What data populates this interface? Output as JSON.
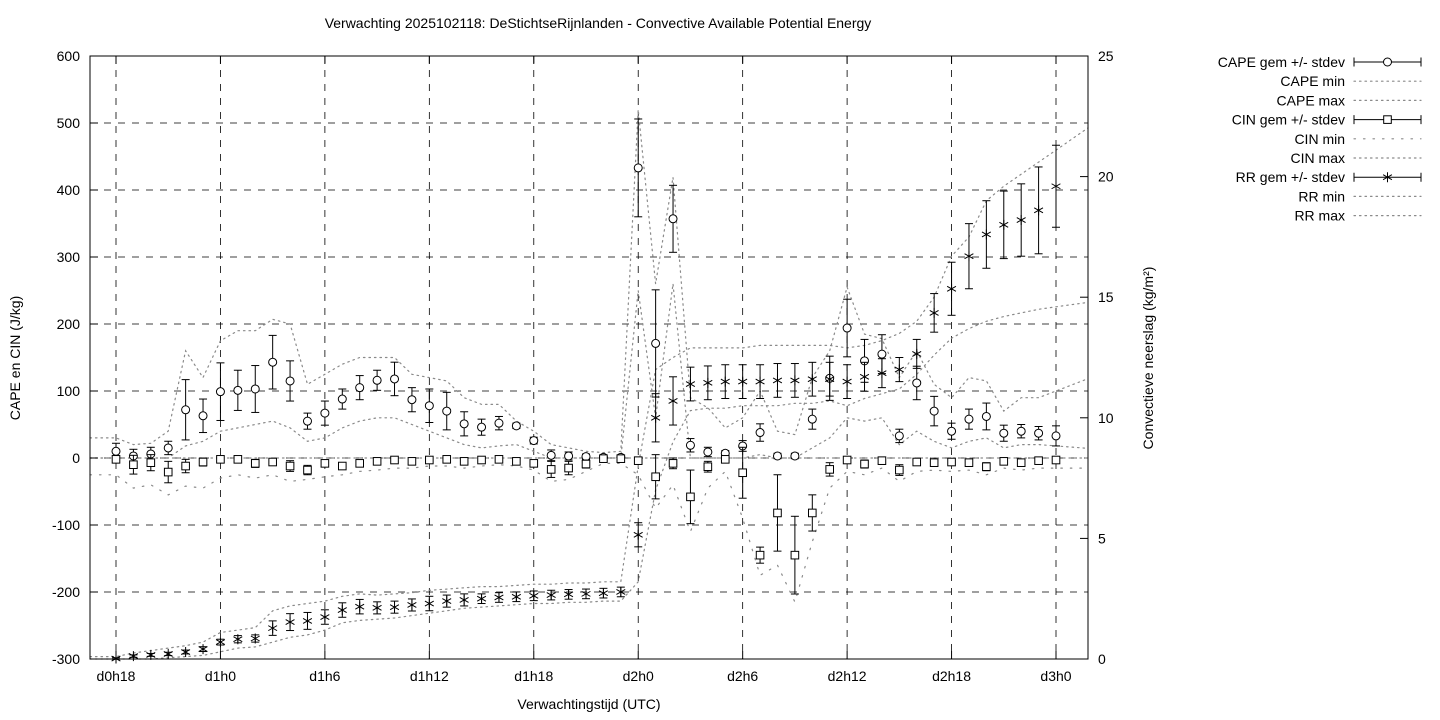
{
  "chart_data": {
    "type": "errorbar-line",
    "title": "Verwachting 2025102118: DeStichtseRijnlanden - Convective Available Potential Energy",
    "xlabel": "Verwachtingstijd (UTC)",
    "ylabel_left": "CAPE en CIN (J/kg)",
    "ylabel_right": "Convectieve neerslag (kg/m²)",
    "ylim_left": [
      -300,
      600
    ],
    "ylim_right": [
      0,
      25
    ],
    "y_ticks_left": [
      -300,
      -200,
      -100,
      0,
      100,
      200,
      300,
      400,
      500,
      600
    ],
    "y_ticks_right": [
      0,
      5,
      10,
      15,
      20,
      25
    ],
    "grid": true,
    "legend_position": "outside-right",
    "colors": {
      "foreground": "#000000",
      "envelope": "#8a8a8a",
      "background": "#ffffff"
    },
    "x_hours": 55,
    "x_ticks": [
      {
        "t": 0,
        "label": "d0h18"
      },
      {
        "t": 6,
        "label": "d1h0"
      },
      {
        "t": 12,
        "label": "d1h6"
      },
      {
        "t": 18,
        "label": "d1h12"
      },
      {
        "t": 24,
        "label": "d1h18"
      },
      {
        "t": 30,
        "label": "d2h0"
      },
      {
        "t": 36,
        "label": "d2h6"
      },
      {
        "t": 42,
        "label": "d2h12"
      },
      {
        "t": 48,
        "label": "d2h18"
      },
      {
        "t": 54,
        "label": "d3h0"
      }
    ],
    "legend": [
      {
        "label": "CAPE gem +/- stdev",
        "sample": "errorbar",
        "marker": "circle"
      },
      {
        "label": "CAPE min",
        "sample": "dots"
      },
      {
        "label": "CAPE max",
        "sample": "dots"
      },
      {
        "label": "CIN gem +/- stdev",
        "sample": "errorbar",
        "marker": "square"
      },
      {
        "label": "CIN min",
        "sample": "sparse-dots"
      },
      {
        "label": "CIN max",
        "sample": "dots"
      },
      {
        "label": "RR gem +/- stdev",
        "sample": "errorbar",
        "marker": "asterisk"
      },
      {
        "label": "RR min",
        "sample": "dots"
      },
      {
        "label": "RR max",
        "sample": "dots"
      }
    ],
    "series": {
      "cape": {
        "name": "CAPE",
        "axis": "left",
        "marker": "circle",
        "mean": [
          10,
          3,
          6,
          15,
          72,
          63,
          99,
          101,
          103,
          143,
          115,
          55,
          67,
          88,
          105,
          116,
          118,
          87,
          78,
          70,
          51,
          46,
          52,
          48,
          26,
          4,
          3,
          2,
          1,
          1,
          433,
          171,
          357,
          19,
          9,
          7,
          18,
          38,
          3,
          3,
          58,
          119,
          194,
          145,
          155,
          33,
          112,
          70,
          40,
          58,
          62,
          37,
          40,
          37,
          33
        ],
        "std": [
          12,
          10,
          10,
          10,
          45,
          25,
          43,
          30,
          35,
          40,
          30,
          12,
          18,
          15,
          18,
          15,
          25,
          18,
          25,
          28,
          18,
          12,
          10,
          4,
          5,
          8,
          6,
          4,
          2,
          2,
          73,
          80,
          50,
          10,
          7,
          4,
          8,
          13,
          4,
          4,
          15,
          33,
          43,
          32,
          29,
          10,
          25,
          22,
          12,
          15,
          20,
          12,
          10,
          10,
          15
        ],
        "min": [
          0,
          0,
          0,
          0,
          18,
          25,
          40,
          45,
          50,
          55,
          45,
          25,
          30,
          45,
          55,
          60,
          60,
          50,
          40,
          30,
          20,
          15,
          18,
          20,
          10,
          0,
          0,
          0,
          0,
          0,
          250,
          60,
          260,
          0,
          0,
          0,
          0,
          5,
          0,
          0,
          15,
          30,
          60,
          55,
          60,
          20,
          40,
          25,
          15,
          25,
          30,
          15,
          20,
          20,
          18
        ],
        "max": [
          30,
          20,
          22,
          40,
          160,
          120,
          175,
          190,
          190,
          207,
          200,
          110,
          125,
          140,
          150,
          150,
          150,
          125,
          120,
          115,
          90,
          80,
          80,
          55,
          40,
          20,
          15,
          10,
          8,
          10,
          520,
          260,
          419,
          90,
          75,
          45,
          60,
          100,
          40,
          35,
          120,
          160,
          255,
          185,
          178,
          120,
          160,
          110,
          90,
          120,
          115,
          70,
          90,
          90,
          100
        ]
      },
      "cin": {
        "name": "CIN",
        "axis": "left",
        "marker": "square",
        "mean": [
          -2,
          -10,
          -7,
          -21,
          -12,
          -6,
          -2,
          -2,
          -8,
          -6,
          -12,
          -18,
          -8,
          -12,
          -8,
          -5,
          -3,
          -5,
          -3,
          -2,
          -5,
          -3,
          -2,
          -5,
          -8,
          -17,
          -15,
          -9,
          -1,
          -1,
          -4,
          -28,
          -8,
          -58,
          -13,
          -2,
          -22,
          -145,
          -82,
          -145,
          -82,
          -17,
          -3,
          -9,
          -4,
          -18,
          -6,
          -7,
          -6,
          -7,
          -13,
          -5,
          -7,
          -4,
          -3
        ],
        "std": [
          4,
          14,
          12,
          16,
          10,
          6,
          4,
          3,
          6,
          5,
          8,
          7,
          5,
          5,
          4,
          4,
          3,
          4,
          3,
          3,
          4,
          3,
          2,
          3,
          5,
          12,
          10,
          6,
          2,
          2,
          4,
          33,
          8,
          40,
          8,
          3,
          38,
          12,
          57,
          58,
          27,
          10,
          4,
          6,
          4,
          8,
          4,
          4,
          5,
          4,
          6,
          4,
          4,
          4,
          4
        ],
        "min": [
          -25,
          -45,
          -40,
          -55,
          -42,
          -45,
          -30,
          -25,
          -30,
          -25,
          -35,
          -32,
          -28,
          -25,
          -20,
          -18,
          -15,
          -15,
          -12,
          -12,
          -15,
          -12,
          -10,
          -12,
          -18,
          -35,
          -32,
          -20,
          -8,
          -8,
          -25,
          -75,
          -40,
          -110,
          -45,
          -20,
          -90,
          -175,
          -160,
          -215,
          -125,
          -45,
          -20,
          -25,
          -15,
          -35,
          -20,
          -18,
          -20,
          -18,
          -25,
          -15,
          -18,
          -15,
          -15
        ],
        "max": [
          0,
          0,
          0,
          0,
          0,
          0,
          0,
          0,
          0,
          0,
          0,
          0,
          0,
          0,
          0,
          0,
          0,
          0,
          0,
          0,
          0,
          0,
          0,
          0,
          0,
          0,
          0,
          0,
          0,
          0,
          0,
          0,
          0,
          0,
          0,
          0,
          0,
          0,
          0,
          0,
          0,
          0,
          0,
          0,
          0,
          0,
          0,
          0,
          0,
          0,
          0,
          0,
          0,
          0,
          0
        ]
      },
      "rr": {
        "name": "RR",
        "axis": "right",
        "marker": "asterisk",
        "mean": [
          0.02,
          0.12,
          0.17,
          0.21,
          0.29,
          0.41,
          0.7,
          0.82,
          0.85,
          1.28,
          1.53,
          1.58,
          1.74,
          2.03,
          2.17,
          2.12,
          2.15,
          2.24,
          2.3,
          2.4,
          2.45,
          2.5,
          2.55,
          2.58,
          2.62,
          2.65,
          2.68,
          2.7,
          2.73,
          2.78,
          5.15,
          10.0,
          10.7,
          11.4,
          11.45,
          11.5,
          11.5,
          11.5,
          11.55,
          11.55,
          11.6,
          11.6,
          11.5,
          11.7,
          11.85,
          12.0,
          12.65,
          14.35,
          15.35,
          16.7,
          17.6,
          18.0,
          18.2,
          18.6,
          19.6
        ],
        "std": [
          0.03,
          0.05,
          0.06,
          0.07,
          0.08,
          0.1,
          0.12,
          0.15,
          0.15,
          0.3,
          0.35,
          0.35,
          0.3,
          0.3,
          0.3,
          0.25,
          0.25,
          0.25,
          0.3,
          0.25,
          0.25,
          0.2,
          0.2,
          0.2,
          0.2,
          0.2,
          0.2,
          0.2,
          0.2,
          0.2,
          0.5,
          1.0,
          1.0,
          0.7,
          0.7,
          0.7,
          0.7,
          0.7,
          0.7,
          0.7,
          0.7,
          0.7,
          0.7,
          0.6,
          0.6,
          0.5,
          0.6,
          0.8,
          1.1,
          1.35,
          1.4,
          1.4,
          1.5,
          1.8,
          1.7
        ],
        "min": [
          0,
          0,
          0,
          0.05,
          0.1,
          0.15,
          0.3,
          0.45,
          0.5,
          0.7,
          0.9,
          1.0,
          1.2,
          1.5,
          1.6,
          1.65,
          1.7,
          1.8,
          1.9,
          2.0,
          2.1,
          2.15,
          2.2,
          2.25,
          2.3,
          2.3,
          2.35,
          2.35,
          2.4,
          2.4,
          3.2,
          7.0,
          9.0,
          10.3,
          10.4,
          10.4,
          10.5,
          10.5,
          10.5,
          10.6,
          10.6,
          10.7,
          10.5,
          10.8,
          11.0,
          11.2,
          11.8,
          12.6,
          13.3,
          13.7,
          14.0,
          14.2,
          14.35,
          14.5,
          14.6
        ],
        "max": [
          0.1,
          0.25,
          0.35,
          0.45,
          0.55,
          0.7,
          1.1,
          1.2,
          1.3,
          2.0,
          2.2,
          2.3,
          2.4,
          2.6,
          2.7,
          2.65,
          2.7,
          2.75,
          2.85,
          2.9,
          2.95,
          3.0,
          3.0,
          3.05,
          3.1,
          3.1,
          3.15,
          3.15,
          3.2,
          3.2,
          8.0,
          12.0,
          12.5,
          12.9,
          12.9,
          12.9,
          12.9,
          13.0,
          13.0,
          13.0,
          13.0,
          13.0,
          12.9,
          13.0,
          13.2,
          13.5,
          14.0,
          15.0,
          16.7,
          17.5,
          19.0,
          19.6,
          20.1,
          20.6,
          21.1
        ]
      }
    }
  }
}
